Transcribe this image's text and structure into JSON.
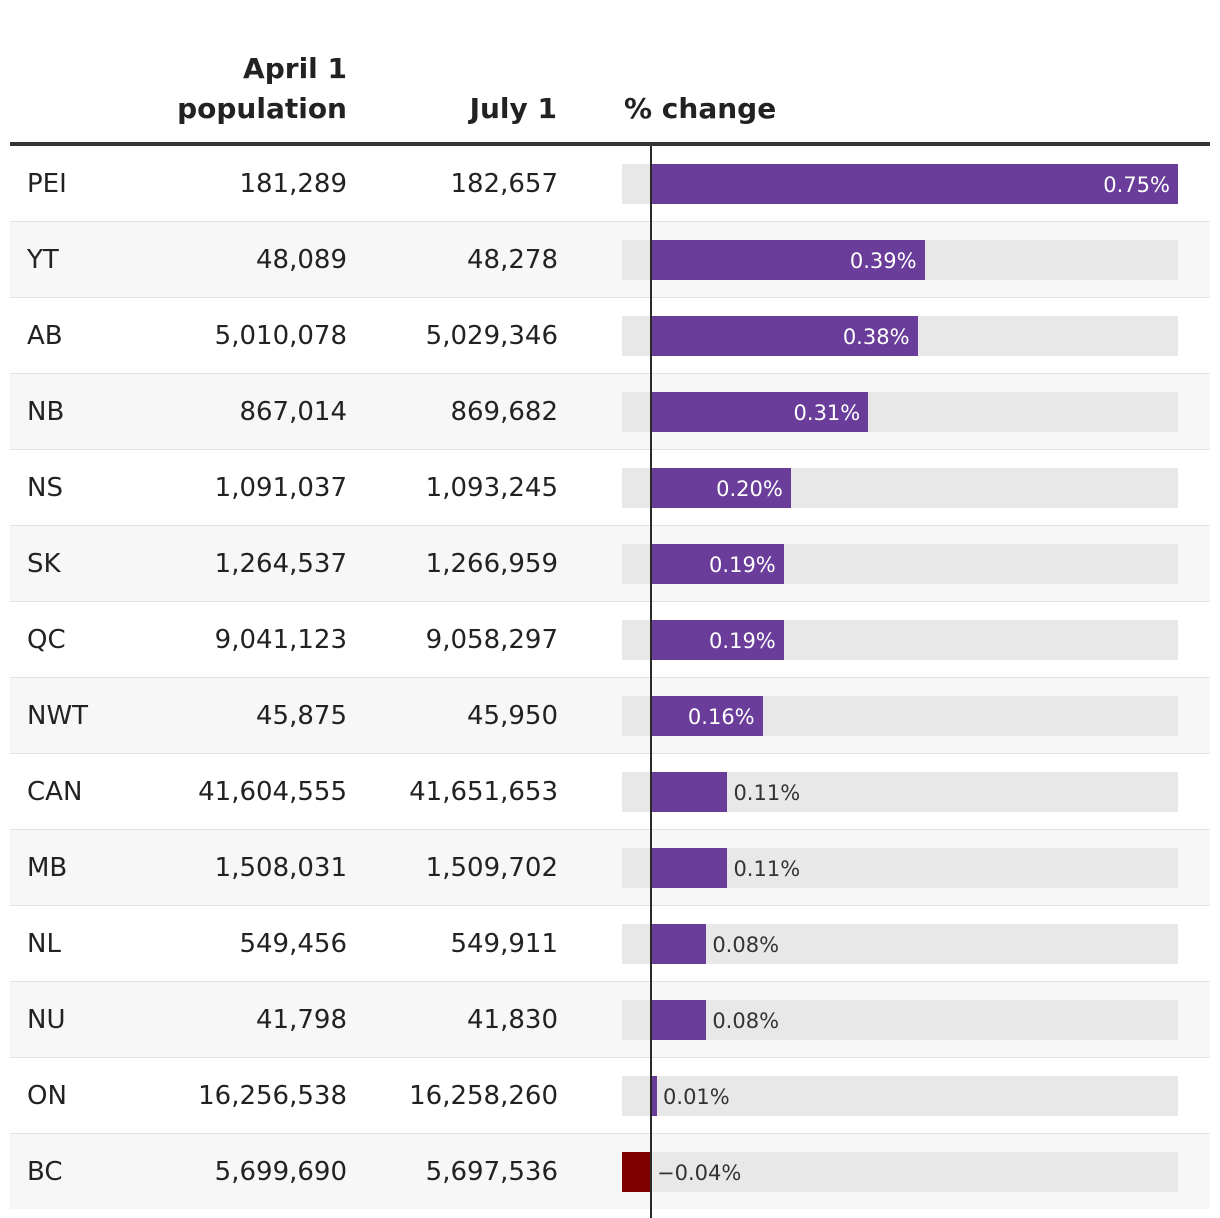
{
  "header": {
    "col_april_line1": "April 1",
    "col_april_line2": "population",
    "col_july": "July 1",
    "col_change": "% change"
  },
  "colors": {
    "positive": "#6a3d9a",
    "negative": "#7f0000",
    "track": "#e8e8e8"
  },
  "chart_data": {
    "type": "table",
    "columns": [
      "",
      "April 1 population",
      "July 1",
      "% change"
    ],
    "xlim": [
      -0.04,
      0.75
    ],
    "rows": [
      {
        "prov": "PEI",
        "april": "181,289",
        "july": "182,657",
        "change": 0.75,
        "label": "0.75%"
      },
      {
        "prov": "YT",
        "april": "48,089",
        "july": "48,278",
        "change": 0.39,
        "label": "0.39%"
      },
      {
        "prov": "AB",
        "april": "5,010,078",
        "july": "5,029,346",
        "change": 0.38,
        "label": "0.38%"
      },
      {
        "prov": "NB",
        "april": "867,014",
        "july": "869,682",
        "change": 0.31,
        "label": "0.31%"
      },
      {
        "prov": "NS",
        "april": "1,091,037",
        "july": "1,093,245",
        "change": 0.2,
        "label": "0.20%"
      },
      {
        "prov": "SK",
        "april": "1,264,537",
        "july": "1,266,959",
        "change": 0.19,
        "label": "0.19%"
      },
      {
        "prov": "QC",
        "april": "9,041,123",
        "july": "9,058,297",
        "change": 0.19,
        "label": "0.19%"
      },
      {
        "prov": "NWT",
        "april": "45,875",
        "july": "45,950",
        "change": 0.16,
        "label": "0.16%"
      },
      {
        "prov": "CAN",
        "april": "41,604,555",
        "july": "41,651,653",
        "change": 0.11,
        "label": "0.11%"
      },
      {
        "prov": "MB",
        "april": "1,508,031",
        "july": "1,509,702",
        "change": 0.11,
        "label": "0.11%"
      },
      {
        "prov": "NL",
        "april": "549,456",
        "july": "549,911",
        "change": 0.08,
        "label": "0.08%"
      },
      {
        "prov": "NU",
        "april": "41,798",
        "july": "41,830",
        "change": 0.08,
        "label": "0.08%"
      },
      {
        "prov": "ON",
        "april": "16,256,538",
        "july": "16,258,260",
        "change": 0.01,
        "label": "0.01%"
      },
      {
        "prov": "BC",
        "april": "5,699,690",
        "july": "5,697,536",
        "change": -0.04,
        "label": "−0.04%"
      }
    ]
  }
}
